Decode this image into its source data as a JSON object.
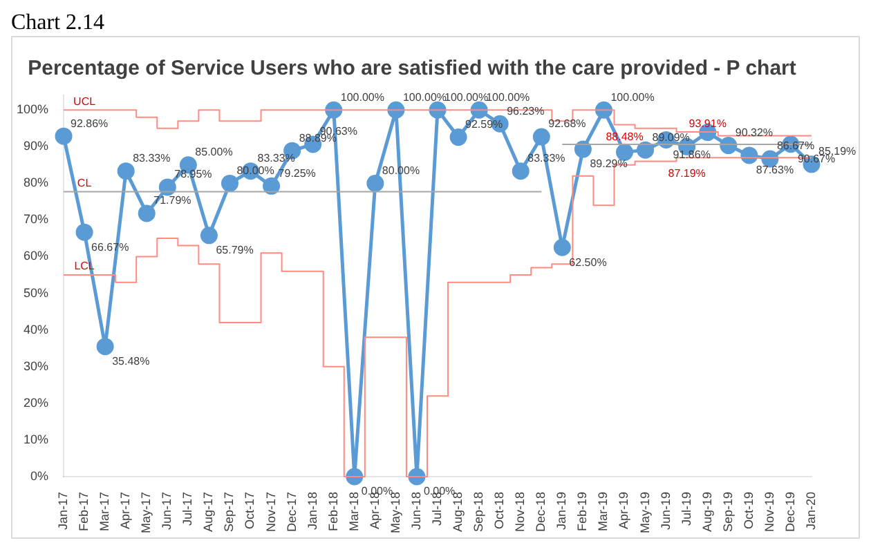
{
  "chart_data": {
    "type": "line",
    "title": "Percentage of Service Users who are satisfied with the care provided - P chart",
    "categories": [
      "Jan-17",
      "Feb-17",
      "Mar-17",
      "Apr-17",
      "May-17",
      "Jun-17",
      "Jul-17",
      "Aug-17",
      "Sep-17",
      "Oct-17",
      "Nov-17",
      "Dec-17",
      "Jan-18",
      "Feb-18",
      "Mar-18",
      "Apr-18",
      "May-18",
      "Jun-18",
      "Jul-18",
      "Aug-18",
      "Sep-18",
      "Oct-18",
      "Nov-18",
      "Dec-18",
      "Jan-19",
      "Feb-19",
      "Mar-19",
      "Apr-19",
      "May-19",
      "Jun-19",
      "Jul-19",
      "Aug-19",
      "Sep-19",
      "Oct-19",
      "Nov-19",
      "Dec-19",
      "Jan-20"
    ],
    "series": [
      {
        "type": "step",
        "color": "#ff8a80",
        "marker": "none",
        "values": [
          100,
          100,
          100,
          100,
          98,
          95,
          97,
          100,
          97,
          97,
          100,
          100,
          100,
          100,
          100,
          100,
          100,
          100,
          100,
          100,
          100,
          100,
          100,
          100,
          97,
          100,
          100,
          96,
          95,
          95,
          94,
          94,
          93,
          93,
          93,
          93,
          93
        ]
      },
      {
        "type": "step",
        "color": "#a6a6a6",
        "marker": "none",
        "values": [
          77.7,
          77.7,
          77.7,
          77.7,
          77.7,
          77.7,
          77.7,
          77.7,
          77.7,
          77.7,
          77.7,
          77.7,
          77.7,
          77.7,
          77.7,
          77.7,
          77.7,
          77.7,
          77.7,
          77.7,
          77.7,
          77.7,
          77.7,
          77.7,
          null,
          null,
          null,
          null,
          null,
          null,
          null,
          null,
          null,
          null,
          null,
          null,
          null
        ]
      },
      {
        "type": "step",
        "color": "#a6a6a6",
        "marker": "none",
        "values": [
          null,
          null,
          null,
          null,
          null,
          null,
          null,
          null,
          null,
          null,
          null,
          null,
          null,
          null,
          null,
          null,
          null,
          null,
          null,
          null,
          null,
          null,
          null,
          null,
          90.6,
          90.6,
          90.6,
          90.6,
          90.6,
          90.6,
          90.6,
          90.6,
          90.6,
          90.6,
          90.6,
          90.6,
          90.6
        ]
      },
      {
        "type": "step",
        "color": "#ff8a80",
        "marker": "none",
        "values": [
          55,
          55,
          55,
          53,
          60,
          65,
          63,
          58,
          42,
          42,
          61,
          56,
          56,
          30,
          0,
          38,
          38,
          0,
          22,
          53,
          53,
          53,
          55,
          57,
          58,
          82,
          74,
          85,
          86,
          86,
          87,
          87,
          87,
          87,
          87,
          87,
          87
        ]
      },
      {
        "color": "#5b9bd5",
        "values": [
          92.86,
          66.67,
          35.48,
          83.33,
          71.79,
          78.95,
          85.0,
          65.79,
          80.0,
          83.33,
          79.25,
          88.89,
          90.63,
          100,
          0,
          80.0,
          100,
          0,
          100,
          92.59,
          100,
          96.23,
          83.33,
          92.68,
          62.5,
          89.29,
          100,
          88.48,
          89.09,
          91.86,
          90.0,
          93.91,
          90.32,
          87.63,
          86.67,
          90.67,
          85.19
        ],
        "value_labels": [
          "92.86%",
          "66.67%",
          "35.48%",
          "83.33%",
          "71.79%",
          "78.95%",
          "85.00%",
          "65.79%",
          "80.00%",
          "83.33%",
          "79.25%",
          "88.89%",
          "90.63%",
          "100.00%",
          "0.00%",
          "80.00%",
          "100.00%",
          "0.00%",
          "100.00%",
          "92.59%",
          "100.00%",
          "96.23%",
          "83.33%",
          "92.68%",
          "62.50%",
          "89.29%",
          "100.00%",
          null,
          "89.09%",
          "91.86%",
          null,
          null,
          "90.32%",
          "87.63%",
          "86.67%",
          "90.67%",
          "85.19%"
        ]
      }
    ],
    "annotations": [
      "Chart 2.14",
      {
        "text": "UCL",
        "x": "Feb-17",
        "y": 100
      },
      {
        "text": "CL",
        "x": "Feb-17",
        "y": 77.7
      },
      {
        "text": "LCL",
        "x": "Feb-17",
        "y": 55
      },
      {
        "text": "88.48%",
        "x": "Apr-19",
        "y": 88.48
      },
      {
        "text": "93.91%",
        "x": "Aug-19",
        "y": 93.91
      },
      {
        "text": "87.19%",
        "x": "Jul-19",
        "y": 87.19
      }
    ],
    "ylim": [
      0,
      104
    ],
    "yticks": [
      {
        "value": 0,
        "label": "0%"
      },
      {
        "value": 10,
        "label": "10%"
      },
      {
        "value": 20,
        "label": "20%"
      },
      {
        "value": 30,
        "label": "30%"
      },
      {
        "value": 40,
        "label": "40%"
      },
      {
        "value": 50,
        "label": "50%"
      },
      {
        "value": 60,
        "label": "60%"
      },
      {
        "value": 70,
        "label": "70%"
      },
      {
        "value": 80,
        "label": "80%"
      },
      {
        "value": 90,
        "label": "90%"
      },
      {
        "value": 100,
        "label": "100%"
      }
    ],
    "marker": "circle",
    "grid": false,
    "legend": false
  }
}
